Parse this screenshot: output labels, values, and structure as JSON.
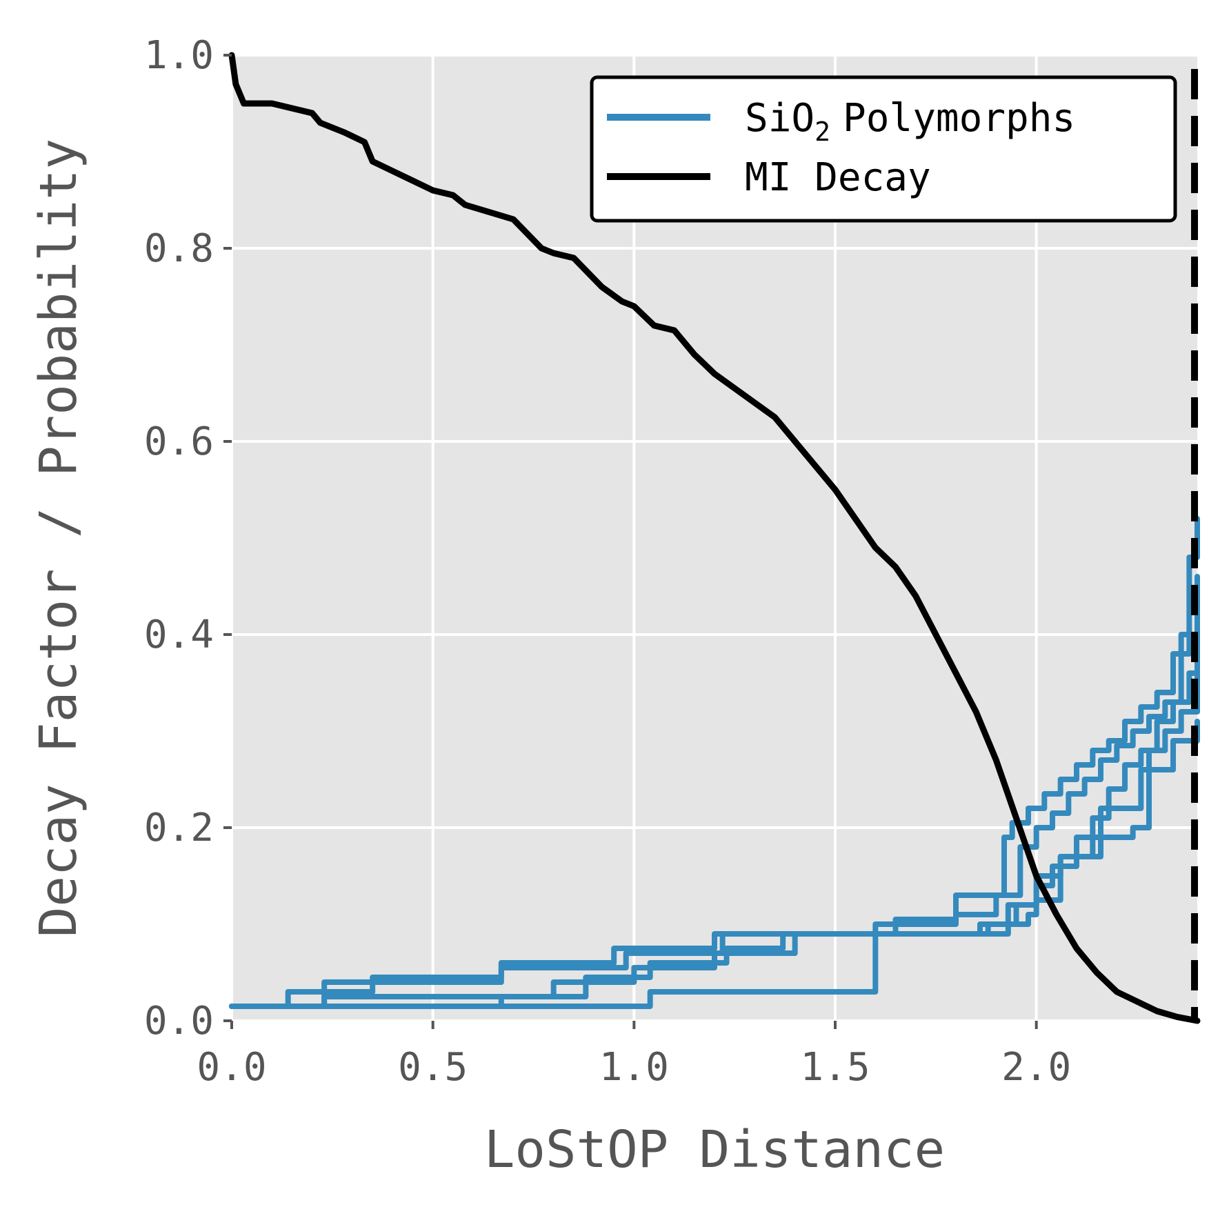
{
  "chart_data": {
    "type": "line",
    "xlabel": "LoStOP Distance",
    "ylabel": "Decay Factor / Probability",
    "xlim": [
      0.0,
      2.4
    ],
    "ylim": [
      0.0,
      1.0
    ],
    "xticks": [
      "0.0",
      "0.5",
      "1.0",
      "1.5",
      "2.0"
    ],
    "yticks": [
      "0.0",
      "0.2",
      "0.4",
      "0.6",
      "0.8",
      "1.0"
    ],
    "grid": true,
    "legend_position": "top-right",
    "legend": [
      {
        "label_main": "SiO",
        "label_sub": "2",
        "label_rest": "Polymorphs",
        "color": "#348ABD"
      },
      {
        "label_main": "MI Decay",
        "label_sub": "",
        "label_rest": "",
        "color": "#000000"
      }
    ],
    "cutoff_line": {
      "x": 2.4,
      "style": "dashed",
      "color": "#000000"
    },
    "series": [
      {
        "group": "SiO2 Polymorphs",
        "color": "#348ABD",
        "step": true,
        "x": [
          0.0,
          0.14,
          0.35,
          0.67,
          0.95,
          1.2,
          1.65,
          1.8,
          1.92,
          1.94,
          1.98,
          2.02,
          2.06,
          2.1,
          2.14,
          2.18,
          2.22,
          2.26,
          2.3,
          2.34,
          2.38,
          2.4
        ],
        "y": [
          0.015,
          0.03,
          0.045,
          0.06,
          0.075,
          0.09,
          0.105,
          0.13,
          0.19,
          0.205,
          0.22,
          0.235,
          0.25,
          0.265,
          0.28,
          0.29,
          0.31,
          0.325,
          0.34,
          0.38,
          0.48,
          0.52
        ]
      },
      {
        "group": "SiO2 Polymorphs",
        "color": "#348ABD",
        "step": true,
        "x": [
          0.0,
          0.23,
          0.67,
          0.98,
          1.22,
          1.6,
          1.8,
          1.9,
          1.96,
          2.0,
          2.04,
          2.08,
          2.12,
          2.16,
          2.2,
          2.24,
          2.28,
          2.32,
          2.36,
          2.4
        ],
        "y": [
          0.015,
          0.04,
          0.055,
          0.07,
          0.09,
          0.1,
          0.11,
          0.13,
          0.18,
          0.2,
          0.215,
          0.235,
          0.25,
          0.27,
          0.285,
          0.3,
          0.315,
          0.33,
          0.4,
          0.46
        ]
      },
      {
        "group": "SiO2 Polymorphs",
        "color": "#348ABD",
        "step": true,
        "x": [
          0.0,
          0.23,
          0.8,
          1.0,
          1.2,
          1.4,
          1.86,
          1.95,
          2.0,
          2.04,
          2.1,
          2.14,
          2.18,
          2.22,
          2.26,
          2.3,
          2.34,
          2.38,
          2.4
        ],
        "y": [
          0.015,
          0.025,
          0.04,
          0.055,
          0.07,
          0.09,
          0.1,
          0.12,
          0.14,
          0.16,
          0.19,
          0.21,
          0.24,
          0.265,
          0.28,
          0.31,
          0.33,
          0.36,
          0.41
        ]
      },
      {
        "group": "SiO2 Polymorphs",
        "color": "#348ABD",
        "step": true,
        "x": [
          0.0,
          0.67,
          0.88,
          1.04,
          1.23,
          1.37,
          1.88,
          1.98,
          2.0,
          2.06,
          2.14,
          2.24,
          2.28,
          2.32,
          2.36,
          2.4
        ],
        "y": [
          0.015,
          0.025,
          0.045,
          0.06,
          0.075,
          0.09,
          0.1,
          0.11,
          0.125,
          0.17,
          0.19,
          0.2,
          0.28,
          0.3,
          0.32,
          0.36
        ]
      },
      {
        "group": "SiO2 Polymorphs",
        "color": "#348ABD",
        "step": true,
        "x": [
          0.0,
          0.92,
          1.04,
          1.6,
          1.93,
          2.0,
          2.06,
          2.16,
          2.26,
          2.34,
          2.4
        ],
        "y": [
          0.015,
          0.015,
          0.03,
          0.09,
          0.12,
          0.15,
          0.17,
          0.22,
          0.26,
          0.29,
          0.31
        ]
      },
      {
        "group": "MI Decay",
        "color": "#000000",
        "step": false,
        "x": [
          0.0,
          0.01,
          0.03,
          0.1,
          0.2,
          0.22,
          0.28,
          0.33,
          0.35,
          0.4,
          0.5,
          0.55,
          0.58,
          0.66,
          0.7,
          0.77,
          0.8,
          0.85,
          0.92,
          0.97,
          1.0,
          1.05,
          1.1,
          1.15,
          1.2,
          1.25,
          1.3,
          1.35,
          1.4,
          1.45,
          1.5,
          1.55,
          1.6,
          1.65,
          1.7,
          1.75,
          1.8,
          1.85,
          1.9,
          1.95,
          2.0,
          2.05,
          2.1,
          2.15,
          2.2,
          2.25,
          2.3,
          2.35,
          2.4
        ],
        "y": [
          1.0,
          0.97,
          0.95,
          0.95,
          0.94,
          0.93,
          0.92,
          0.91,
          0.89,
          0.88,
          0.86,
          0.855,
          0.845,
          0.835,
          0.83,
          0.8,
          0.795,
          0.79,
          0.76,
          0.745,
          0.74,
          0.72,
          0.715,
          0.69,
          0.67,
          0.655,
          0.64,
          0.625,
          0.6,
          0.575,
          0.55,
          0.52,
          0.49,
          0.47,
          0.44,
          0.4,
          0.36,
          0.32,
          0.27,
          0.21,
          0.15,
          0.11,
          0.075,
          0.05,
          0.03,
          0.02,
          0.01,
          0.004,
          0.0
        ]
      }
    ]
  }
}
